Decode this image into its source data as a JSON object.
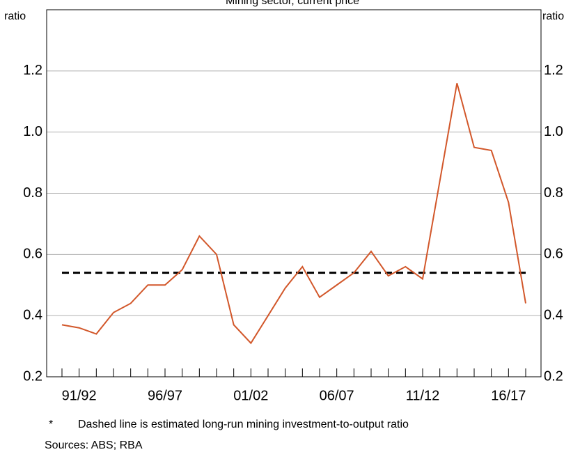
{
  "chart_data": {
    "type": "line",
    "title": "Mining sector, current price",
    "y_label": "ratio",
    "y2_label": "ratio",
    "categories": [
      null,
      "91/92",
      null,
      null,
      null,
      null,
      "96/97",
      null,
      null,
      null,
      null,
      "01/02",
      null,
      null,
      null,
      null,
      "06/07",
      null,
      null,
      null,
      null,
      "11/12",
      null,
      null,
      null,
      null,
      "16/17",
      null
    ],
    "series": [
      {
        "color": "#d2572a",
        "values": [
          0.37,
          0.36,
          0.34,
          0.41,
          0.44,
          0.5,
          0.5,
          0.55,
          0.66,
          0.6,
          0.37,
          0.31,
          0.4,
          0.49,
          0.56,
          0.46,
          0.5,
          0.54,
          0.61,
          0.53,
          0.56,
          0.52,
          0.84,
          1.16,
          0.95,
          0.94,
          0.77,
          0.44
        ]
      }
    ],
    "long_run_ratio": 0.54,
    "long_run_color": "#000000",
    "ylim": [
      0.2,
      1.4
    ],
    "yticks": [
      0.2,
      0.4,
      0.6,
      0.8,
      {
        "value": 1,
        "label": "1.0"
      },
      1.2
    ],
    "grid": true,
    "footnote_marker": "*",
    "footnote": "Dashed line is estimated long-run mining investment-to-output ratio",
    "sources": "Sources: ABS; RBA"
  }
}
